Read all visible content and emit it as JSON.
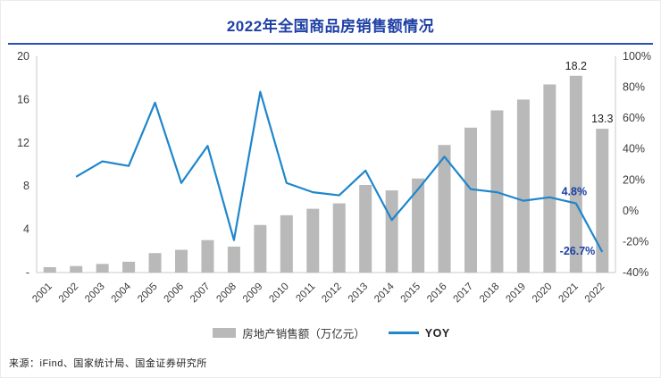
{
  "title": "2022年全国商品房销售额情况",
  "source": "来源：iFind、国家统计局、国金证券研究所",
  "legend": {
    "bar_label": "房地产销售额（万亿元）",
    "line_label": "YOY"
  },
  "colors": {
    "bar": "#b9b9b9",
    "line": "#1f86cb",
    "title": "#1d3fa5",
    "divider": "#2750b4",
    "annotation_blue": "#1d3fa5",
    "annotation_black": "#222222",
    "axis": "#c9c9c9",
    "tick_text": "#3c3c3c"
  },
  "chart_data": {
    "type": "bar",
    "title": "2022年全国商品房销售额情况",
    "categories": [
      "2001",
      "2002",
      "2003",
      "2004",
      "2005",
      "2006",
      "2007",
      "2008",
      "2009",
      "2010",
      "2011",
      "2012",
      "2013",
      "2014",
      "2015",
      "2016",
      "2017",
      "2018",
      "2019",
      "2020",
      "2021",
      "2022"
    ],
    "series": [
      {
        "name": "房地产销售额（万亿元）",
        "type": "bar",
        "axis": "left",
        "values": [
          0.5,
          0.6,
          0.8,
          1.0,
          1.8,
          2.1,
          3.0,
          2.4,
          4.4,
          5.3,
          5.9,
          6.4,
          8.1,
          7.6,
          8.7,
          11.8,
          13.4,
          15.0,
          16.0,
          17.4,
          18.2,
          13.3
        ]
      },
      {
        "name": "YOY",
        "type": "line",
        "axis": "right",
        "values": [
          null,
          22,
          32,
          29,
          70,
          18,
          42,
          -19,
          77,
          18,
          12,
          10,
          26,
          -6,
          14,
          35,
          14,
          12,
          6.5,
          8.7,
          4.8,
          -26.7
        ]
      }
    ],
    "left_axis": {
      "min": 0,
      "max": 20,
      "tick_step": 4,
      "tick_labels": [
        "20",
        "16",
        "12",
        "8",
        "4",
        "-"
      ]
    },
    "right_axis": {
      "min": -40,
      "max": 100,
      "tick_step": 20,
      "tick_labels": [
        "100%",
        "80%",
        "60%",
        "40%",
        "20%",
        "0%",
        "-20%",
        "-40%"
      ]
    },
    "grid": false,
    "legend_position": "bottom",
    "annotations": {
      "bar_labels": [
        {
          "index": 20,
          "text": "18.2"
        },
        {
          "index": 21,
          "text": "13.3"
        }
      ],
      "line_labels": [
        {
          "index": 20,
          "text": "4.8%",
          "placement": "above"
        },
        {
          "index": 21,
          "text": "-26.7%",
          "placement": "left"
        }
      ]
    }
  }
}
